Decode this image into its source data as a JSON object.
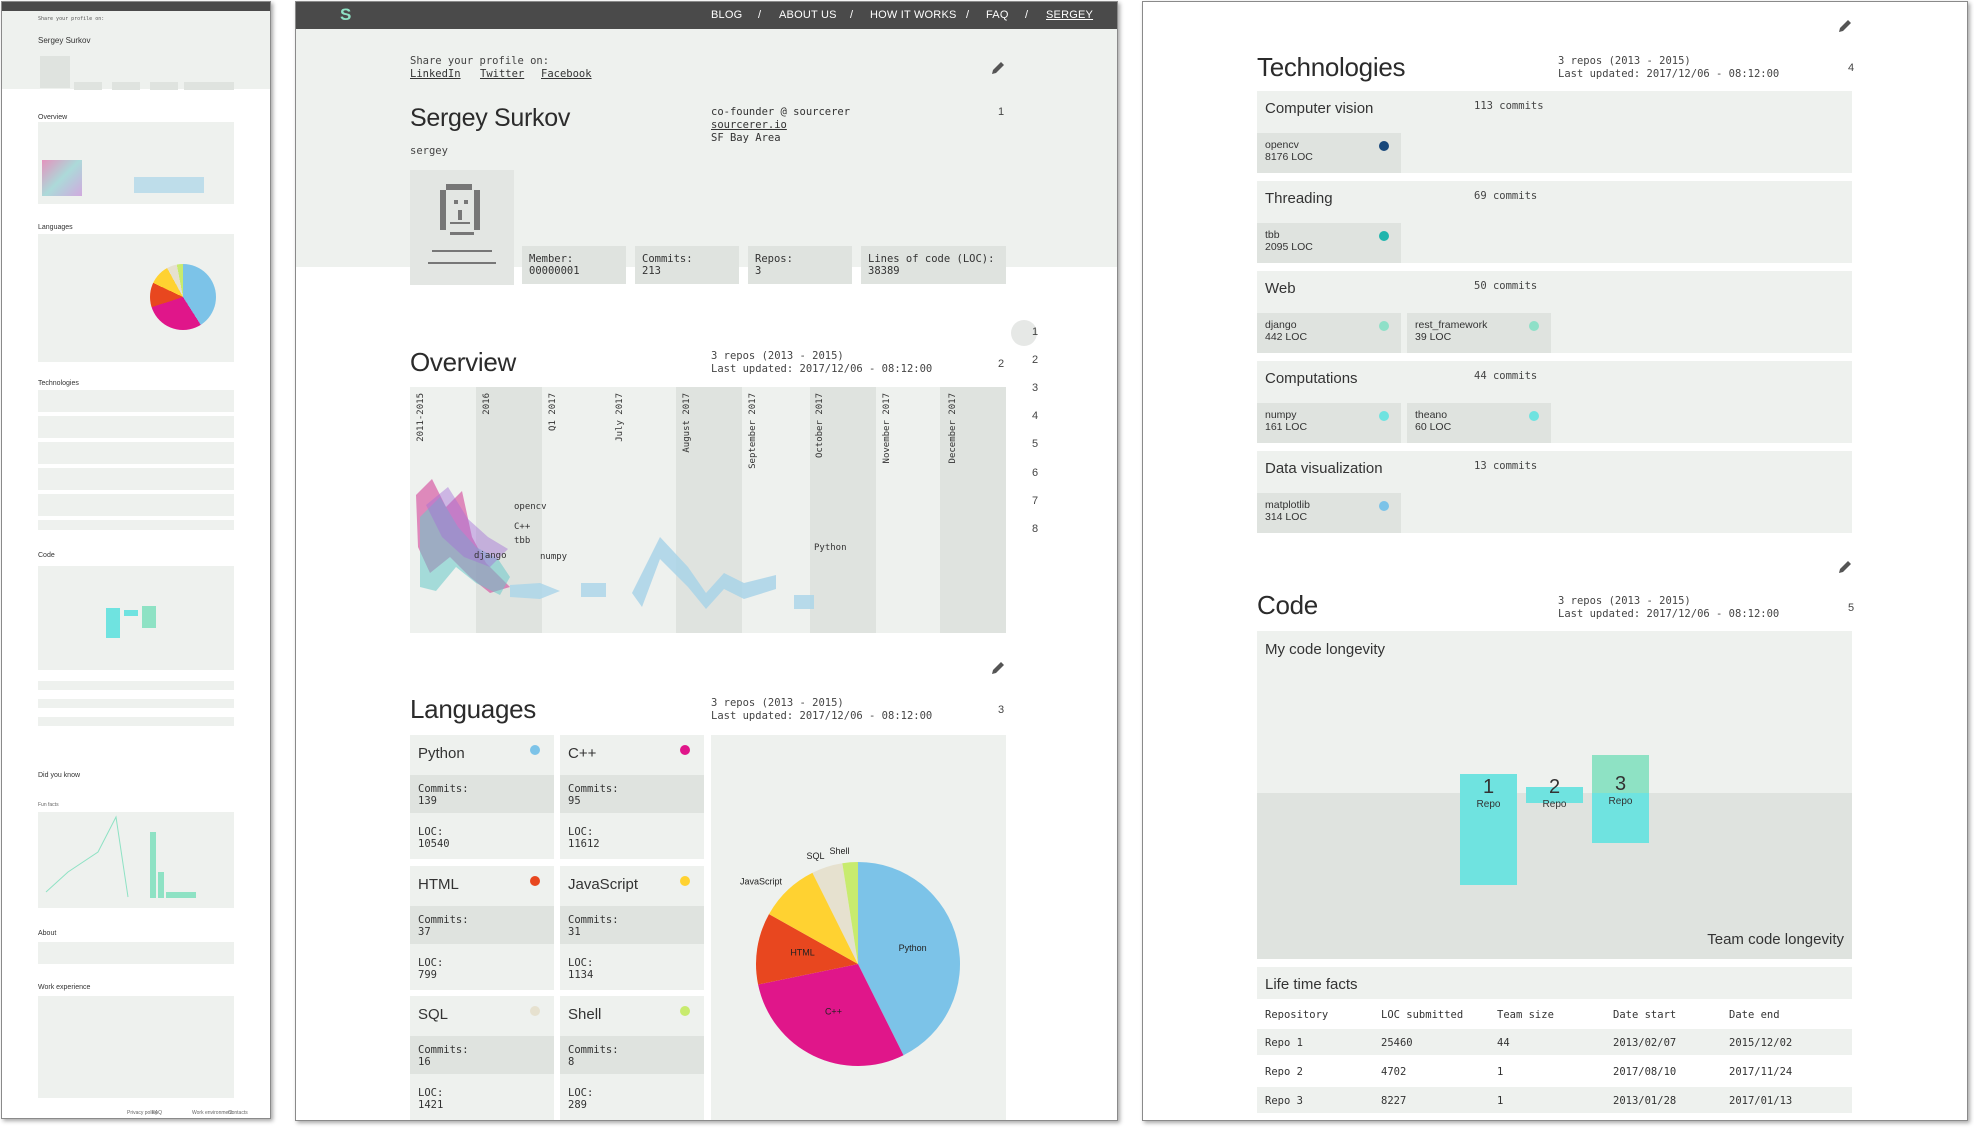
{
  "brand": {
    "logo": "S"
  },
  "nav": {
    "items": [
      "BLOG",
      "ABOUT US",
      "HOW IT WORKS",
      "FAQ",
      "SERGEY"
    ],
    "seps": [
      "/",
      "/",
      "/",
      "/"
    ]
  },
  "profile": {
    "share_label": "Share your profile on:",
    "share_links": [
      "LinkedIn",
      "Twitter",
      "Facebook"
    ],
    "name": "Sergey Surkov",
    "username": "sergey",
    "role": "co-founder @ sourcerer",
    "site": "sourcerer.io",
    "location": "SF Bay Area",
    "section_num": "1",
    "stats": [
      {
        "label": "Member:",
        "value": "00000001"
      },
      {
        "label": "Commits:",
        "value": "213"
      },
      {
        "label": "Repos:",
        "value": "3"
      },
      {
        "label": "Lines of code (LOC):",
        "value": "38389"
      }
    ]
  },
  "overview": {
    "title": "Overview",
    "repos": "3 repos (2013 - 2015)",
    "updated": "Last updated: 2017/12/06 - 08:12:00",
    "section_num": "2",
    "columns": [
      "2011-2015",
      "2016",
      "Q1 2017",
      "July 2017",
      "August 2017",
      "September 2017",
      "October 2017",
      "November 2017",
      "December 2017"
    ],
    "labels": [
      "opencv",
      "C++",
      "tbb",
      "django",
      "numpy",
      "Python"
    ],
    "side_nums": [
      "1",
      "2",
      "3",
      "4",
      "5",
      "6",
      "7",
      "8"
    ]
  },
  "languages": {
    "title": "Languages",
    "repos": "3 repos (2013 - 2015)",
    "updated": "Last updated: 2017/12/06 - 08:12:00",
    "section_num": "3",
    "commits_label": "Commits:",
    "loc_label": "LOC:",
    "items": [
      {
        "name": "Python",
        "commits": "139",
        "loc": "10540",
        "color": "#7cc3e8"
      },
      {
        "name": "C++",
        "commits": "95",
        "loc": "11612",
        "color": "#e0168a"
      },
      {
        "name": "HTML",
        "commits": "37",
        "loc": "799",
        "color": "#e8471f"
      },
      {
        "name": "JavaScript",
        "commits": "31",
        "loc": "1134",
        "color": "#ffd231"
      },
      {
        "name": "SQL",
        "commits": "16",
        "loc": "1421",
        "color": "#e6e1cf"
      },
      {
        "name": "Shell",
        "commits": "8",
        "loc": "289",
        "color": "#c8eb6e"
      }
    ]
  },
  "chart_data": {
    "type": "pie",
    "title": "Languages",
    "categories": [
      "Python",
      "C++",
      "HTML",
      "JavaScript",
      "SQL",
      "Shell"
    ],
    "values": [
      139,
      95,
      37,
      31,
      16,
      8
    ]
  },
  "technologies": {
    "title": "Technologies",
    "repos": "3 repos (2013 - 2015)",
    "updated": "Last updated: 2017/12/06 - 08:12:00",
    "section_num": "4",
    "groups": [
      {
        "name": "Computer vision",
        "commits": "113 commits",
        "libs": [
          {
            "name": "opencv",
            "loc": "8176 LOC",
            "color": "#17477a"
          }
        ]
      },
      {
        "name": "Threading",
        "commits": "69 commits",
        "libs": [
          {
            "name": "tbb",
            "loc": "2095 LOC",
            "color": "#1fb5ad"
          }
        ]
      },
      {
        "name": "Web",
        "commits": "50 commits",
        "libs": [
          {
            "name": "django",
            "loc": "442 LOC",
            "color": "#8fe0c8"
          },
          {
            "name": "rest_framework",
            "loc": "39 LOC",
            "color": "#8fe0c8"
          }
        ]
      },
      {
        "name": "Computations",
        "commits": "44 commits",
        "libs": [
          {
            "name": "numpy",
            "loc": "161 LOC",
            "color": "#6fe3e0"
          },
          {
            "name": "theano",
            "loc": "60 LOC",
            "color": "#6fe3e0"
          }
        ]
      },
      {
        "name": "Data visualization",
        "commits": "13 commits",
        "libs": [
          {
            "name": "matplotlib",
            "loc": "314 LOC",
            "color": "#7cc3e8"
          }
        ]
      }
    ]
  },
  "code": {
    "title": "Code",
    "repos": "3 repos (2013 - 2015)",
    "updated": "Last updated: 2017/12/06 - 08:12:00",
    "section_num": "5",
    "my_longevity": "My code longevity",
    "team_longevity": "Team code longevity",
    "bars": [
      {
        "num": "1",
        "label": "Repo"
      },
      {
        "num": "2",
        "label": "Repo"
      },
      {
        "num": "3",
        "label": "Repo"
      }
    ],
    "facts_title": "Life time facts",
    "headers": [
      "Repository",
      "LOC submitted",
      "Team size",
      "Date start",
      "Date end"
    ],
    "rows": [
      [
        "Repo 1",
        "25460",
        "44",
        "2013/02/07",
        "2015/12/02"
      ],
      [
        "Repo 2",
        "4702",
        "1",
        "2017/08/10",
        "2017/11/24"
      ],
      [
        "Repo 3",
        "8227",
        "1",
        "2013/01/28",
        "2017/01/13"
      ]
    ]
  },
  "thumb": {
    "sections": [
      "Overview",
      "Languages",
      "Technologies",
      "Code",
      "Did you know",
      "About",
      "Work experience"
    ],
    "fun_facts": "Fun facts",
    "footer_items": [
      "Privacy policy",
      "FAQ",
      "Work environment",
      "Contacts"
    ]
  }
}
